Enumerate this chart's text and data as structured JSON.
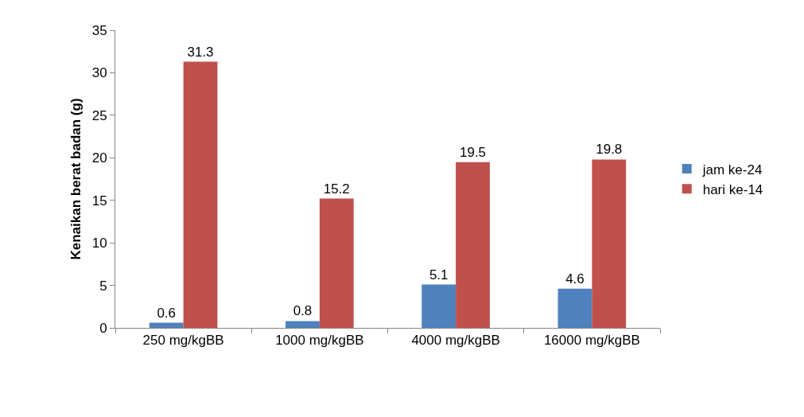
{
  "chart_data": {
    "type": "bar",
    "ylabel": "Kenaikan berat badan (g)",
    "categories": [
      "250 mg/kgBB",
      "1000 mg/kgBB",
      "4000 mg/kgBB",
      "16000 mg/kgBB"
    ],
    "series": [
      {
        "name": "jam ke-24",
        "color": "#4f81bd",
        "values": [
          0.6,
          0.8,
          5.1,
          4.6
        ]
      },
      {
        "name": "hari ke-14",
        "color": "#c0504d",
        "values": [
          31.3,
          15.2,
          19.5,
          19.8
        ]
      }
    ],
    "ylim": [
      0,
      35
    ],
    "yticks": [
      0,
      5,
      10,
      15,
      20,
      25,
      30,
      35
    ],
    "grid": false,
    "legend": "right",
    "data_labels": true
  }
}
